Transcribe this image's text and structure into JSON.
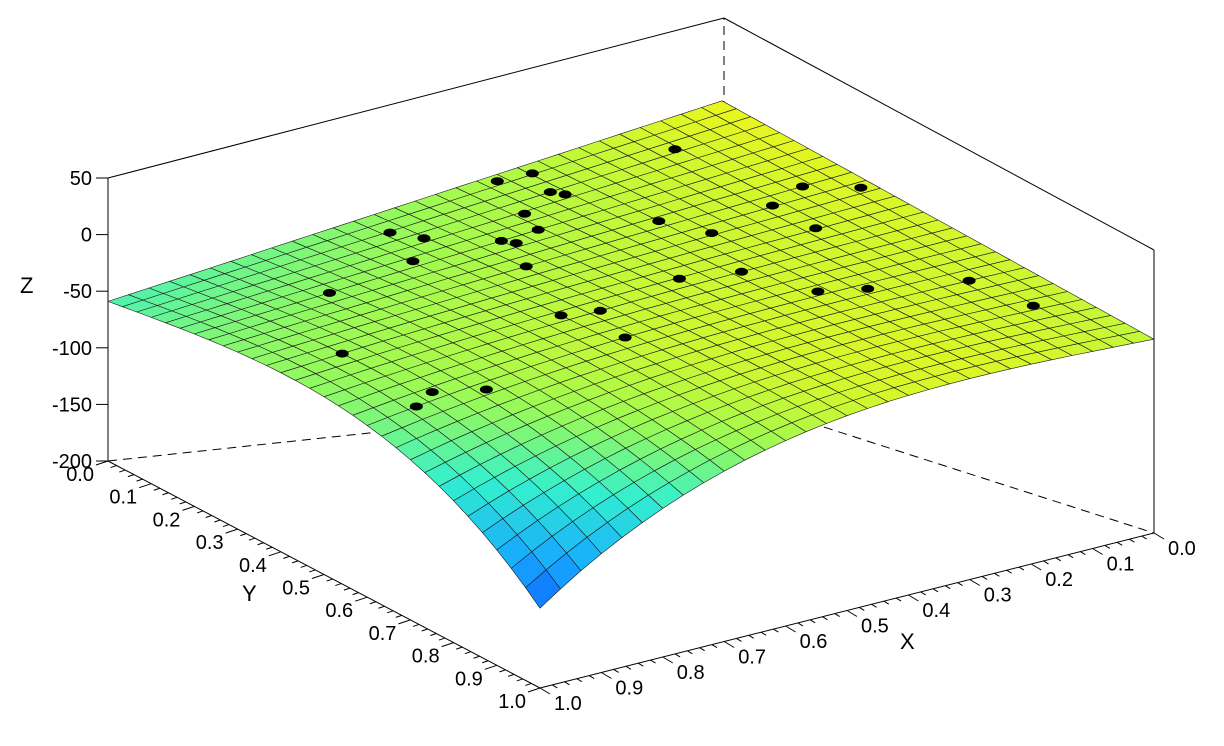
{
  "chart_data": {
    "type": "surface3d",
    "title": "",
    "xlabel": "X",
    "ylabel": "Y",
    "zlabel": "Z",
    "xlim": [
      0.0,
      1.0
    ],
    "ylim": [
      0.0,
      1.0
    ],
    "zlim": [
      -200,
      50
    ],
    "x_tick_labels": [
      "0.0",
      "0.1",
      "0.2",
      "0.3",
      "0.4",
      "0.5",
      "0.6",
      "0.7",
      "0.8",
      "0.9",
      "1.0"
    ],
    "y_tick_labels": [
      "0.0",
      "0.1",
      "0.2",
      "0.3",
      "0.4",
      "0.5",
      "0.6",
      "0.7",
      "0.8",
      "0.9",
      "1.0"
    ],
    "z_tick_labels": [
      "-200",
      "-150",
      "-100",
      "-50",
      "0",
      "50"
    ],
    "x_tick_values": [
      0.0,
      0.1,
      0.2,
      0.3,
      0.4,
      0.5,
      0.6,
      0.7,
      0.8,
      0.9,
      1.0
    ],
    "y_tick_values": [
      0.0,
      0.1,
      0.2,
      0.3,
      0.4,
      0.5,
      0.6,
      0.7,
      0.8,
      0.9,
      1.0
    ],
    "z_tick_values": [
      -200,
      -150,
      -100,
      -50,
      0,
      50
    ],
    "grid_resolution": 30,
    "surface_corner_values": {
      "x0_y0": -20,
      "x1_y0": -60,
      "x0_y1": -30,
      "x1_y1": -200
    },
    "colormap": [
      "#0a2aff",
      "#16aaff",
      "#33f0cf",
      "#9bfa55",
      "#f5f514",
      "#ffab17",
      "#ff5a0a",
      "#ff2a00",
      "#c11409"
    ],
    "scatter_points": [
      {
        "x": 0.9,
        "y": 0.4
      },
      {
        "x": 0.78,
        "y": 0.2
      },
      {
        "x": 0.63,
        "y": 0.18
      },
      {
        "x": 0.57,
        "y": 0.12
      },
      {
        "x": 0.59,
        "y": 0.07
      },
      {
        "x": 0.38,
        "y": 0.02
      },
      {
        "x": 0.33,
        "y": 0.03
      },
      {
        "x": 0.14,
        "y": 0.09
      },
      {
        "x": 0.35,
        "y": 0.1
      },
      {
        "x": 0.34,
        "y": 0.12
      },
      {
        "x": 0.42,
        "y": 0.14
      },
      {
        "x": 0.44,
        "y": 0.2
      },
      {
        "x": 0.3,
        "y": 0.28
      },
      {
        "x": 0.27,
        "y": 0.36
      },
      {
        "x": 0.15,
        "y": 0.33
      },
      {
        "x": 0.08,
        "y": 0.3
      },
      {
        "x": 0.02,
        "y": 0.35
      },
      {
        "x": 0.15,
        "y": 0.43
      },
      {
        "x": 0.92,
        "y": 0.6
      },
      {
        "x": 0.88,
        "y": 0.58
      },
      {
        "x": 0.82,
        "y": 0.62
      },
      {
        "x": 0.55,
        "y": 0.5
      },
      {
        "x": 0.53,
        "y": 0.3
      },
      {
        "x": 0.5,
        "y": 0.2
      },
      {
        "x": 0.49,
        "y": 0.22
      },
      {
        "x": 0.6,
        "y": 0.48
      },
      {
        "x": 0.4,
        "y": 0.47
      },
      {
        "x": 0.32,
        "y": 0.5
      },
      {
        "x": 0.09,
        "y": 0.7
      },
      {
        "x": 0.07,
        "y": 0.82
      },
      {
        "x": 0.58,
        "y": 0.6
      },
      {
        "x": 0.28,
        "y": 0.62
      },
      {
        "x": 0.22,
        "y": 0.65
      }
    ]
  }
}
